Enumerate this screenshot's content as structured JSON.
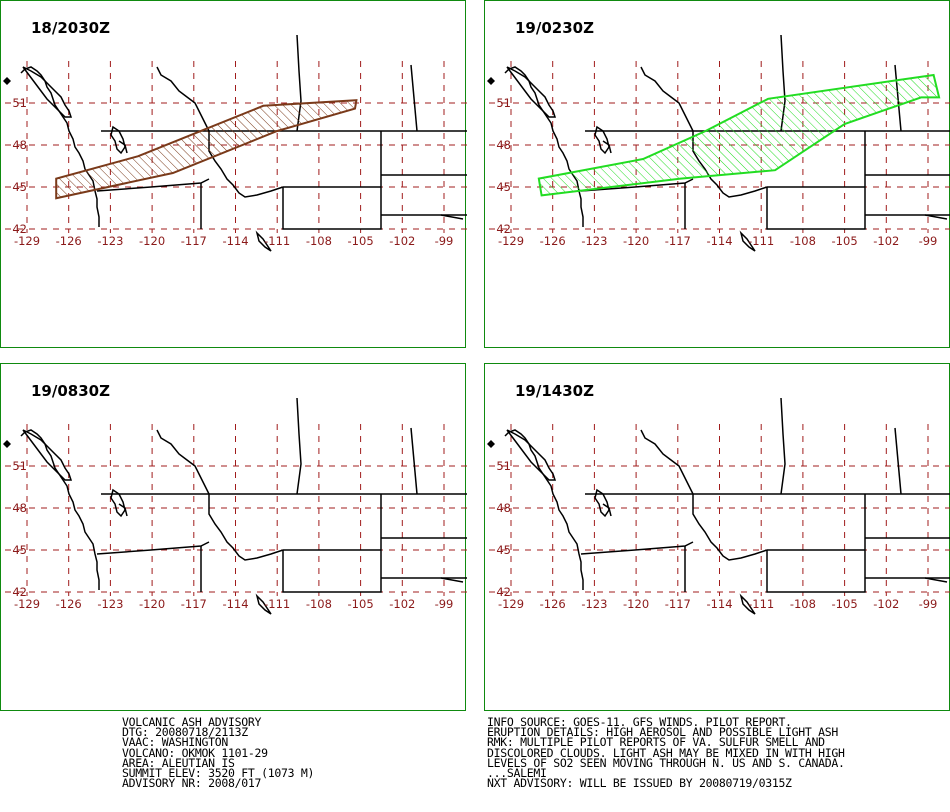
{
  "panels": [
    {
      "title": "18/2030Z",
      "ash_cloud": {
        "color": "#7a3a1a",
        "polygon_lonlat": [
          [
            -126.9,
            45.6
          ],
          [
            -126.9,
            44.2
          ],
          [
            -118.5,
            46.0
          ],
          [
            -111.0,
            49.0
          ],
          [
            -105.4,
            50.6
          ],
          [
            -105.3,
            51.2
          ],
          [
            -112.0,
            50.8
          ],
          [
            -118.0,
            48.4
          ],
          [
            -121.0,
            47.2
          ]
        ]
      }
    },
    {
      "title": "19/0230Z",
      "ash_cloud": {
        "color": "#22dd22",
        "polygon_lonlat": [
          [
            -127.0,
            45.6
          ],
          [
            -126.8,
            44.4
          ],
          [
            -116.8,
            45.6
          ],
          [
            -110.0,
            46.2
          ],
          [
            -105.0,
            49.5
          ],
          [
            -99.5,
            51.4
          ],
          [
            -98.2,
            51.4
          ],
          [
            -98.6,
            53.0
          ],
          [
            -110.5,
            51.3
          ],
          [
            -115.0,
            49.0
          ],
          [
            -119.5,
            47.0
          ]
        ]
      }
    },
    {
      "title": "19/0830Z",
      "ash_cloud": null
    },
    {
      "title": "19/1430Z",
      "ash_cloud": null
    }
  ],
  "map": {
    "lat_ticks": [
      "51",
      "48",
      "45",
      "42"
    ],
    "lon_ticks": [
      "-129",
      "-126",
      "-123",
      "-120",
      "-117",
      "-114",
      "-111",
      "-108",
      "-105",
      "-102",
      "-99"
    ],
    "grid_color": "#a01c1c",
    "tick_label_color": "#8b1a1a"
  },
  "advisory_left": [
    "VOLCANIC ASH ADVISORY",
    "DTG: 20080718/2113Z",
    "VAAC: WASHINGTON",
    "VOLCANO: OKMOK 1101-29",
    "AREA: ALEUTIAN IS",
    "SUMMIT ELEV: 3520 FT (1073 M)",
    "ADVISORY NR: 2008/017"
  ],
  "advisory_right": [
    "INFO SOURCE: GOES-11. GFS WINDS. PILOT REPORT.",
    "ERUPTION DETAILS: HIGH AEROSOL AND POSSIBLE LIGHT ASH",
    "RMK: MULTIPLE PILOT REPORTS OF VA. SULFUR SMELL AND",
    "DISCOLORED CLOUDS. LIGHT ASH MAY BE MIXED IN WITH HIGH",
    "LEVELS OF SO2 SEEN MOVING THROUGH N. US AND S. CANADA.",
    "...SALEMI",
    "NXT ADVISORY: WILL BE ISSUED BY 20080719/0315Z"
  ]
}
